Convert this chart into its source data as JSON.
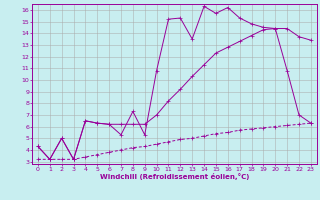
{
  "xlabel": "Windchill (Refroidissement éolien,°C)",
  "xlim": [
    -0.5,
    23.5
  ],
  "ylim": [
    2.8,
    16.5
  ],
  "xticks": [
    0,
    1,
    2,
    3,
    4,
    5,
    6,
    7,
    8,
    9,
    10,
    11,
    12,
    13,
    14,
    15,
    16,
    17,
    18,
    19,
    20,
    21,
    22,
    23
  ],
  "yticks": [
    3,
    4,
    5,
    6,
    7,
    8,
    9,
    10,
    11,
    12,
    13,
    14,
    15,
    16
  ],
  "bg_color": "#c8eef0",
  "line_color": "#990099",
  "grid_color": "#aaaaaa",
  "line1_x": [
    0,
    1,
    2,
    3,
    4,
    5,
    6,
    7,
    8,
    9,
    10,
    11,
    12,
    13,
    14,
    15,
    16,
    17,
    18,
    19,
    20,
    21,
    22,
    23
  ],
  "line1_y": [
    4.3,
    3.2,
    5.0,
    3.2,
    6.5,
    6.3,
    6.2,
    5.3,
    7.3,
    5.3,
    10.8,
    15.2,
    15.3,
    13.5,
    16.3,
    15.7,
    16.2,
    15.3,
    14.8,
    14.5,
    14.4,
    10.8,
    7.0,
    6.3
  ],
  "line2_x": [
    0,
    1,
    2,
    3,
    4,
    5,
    6,
    7,
    8,
    9,
    10,
    11,
    12,
    13,
    14,
    15,
    16,
    17,
    18,
    19,
    20,
    21,
    22,
    23
  ],
  "line2_y": [
    4.3,
    3.2,
    5.0,
    3.2,
    6.5,
    6.3,
    6.2,
    6.2,
    6.2,
    6.2,
    7.0,
    8.2,
    9.2,
    10.3,
    11.3,
    12.3,
    12.8,
    13.3,
    13.8,
    14.3,
    14.4,
    14.4,
    13.7,
    13.4
  ],
  "line3_x": [
    0,
    1,
    2,
    3,
    4,
    5,
    6,
    7,
    8,
    9,
    10,
    11,
    12,
    13,
    14,
    15,
    16,
    17,
    18,
    19,
    20,
    21,
    22,
    23
  ],
  "line3_y": [
    3.2,
    3.2,
    3.2,
    3.2,
    3.4,
    3.6,
    3.8,
    4.0,
    4.2,
    4.3,
    4.5,
    4.7,
    4.9,
    5.0,
    5.2,
    5.4,
    5.5,
    5.7,
    5.8,
    5.9,
    6.0,
    6.1,
    6.2,
    6.3
  ]
}
